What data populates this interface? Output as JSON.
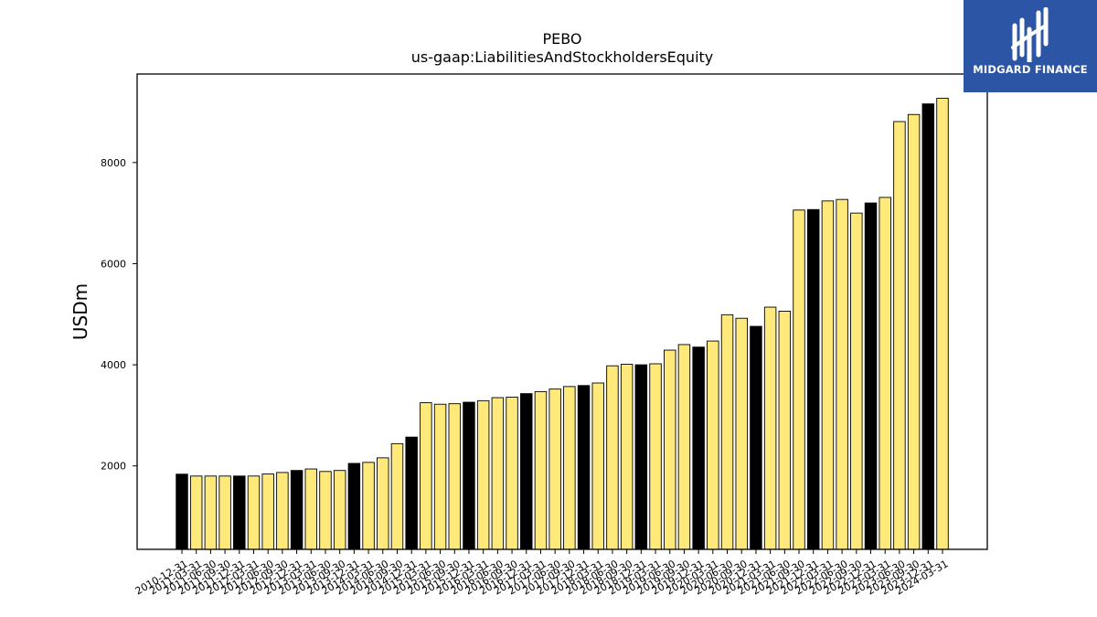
{
  "brand": {
    "name": "MIDGARD FINANCE",
    "logo_icon": "midgard-logo-icon",
    "background_color": "#2c55a6"
  },
  "chart_data": {
    "type": "bar",
    "title": "PEBO",
    "subtitle": "us-gaap:LiabilitiesAndStockholdersEquity",
    "xlabel": "",
    "ylabel": "USDm",
    "ylim": [
      350,
      9750
    ],
    "yticks": [
      2000,
      4000,
      6000,
      8000
    ],
    "grid": false,
    "legend": "none",
    "colors": {
      "annual": "#000000",
      "quarterly": "#ffe97a",
      "edge": "#000000"
    },
    "categories": [
      "2010-12-31",
      "2011-03-31",
      "2011-06-30",
      "2011-09-30",
      "2011-12-31",
      "2012-03-31",
      "2012-06-30",
      "2012-09-30",
      "2012-12-31",
      "2013-03-31",
      "2013-06-30",
      "2013-09-30",
      "2013-12-31",
      "2014-03-31",
      "2014-06-30",
      "2014-09-30",
      "2014-12-31",
      "2015-03-31",
      "2015-06-30",
      "2015-09-30",
      "2015-12-31",
      "2016-03-31",
      "2016-06-30",
      "2016-09-30",
      "2016-12-31",
      "2017-03-31",
      "2017-06-30",
      "2017-09-30",
      "2017-12-31",
      "2018-03-31",
      "2018-06-30",
      "2018-09-30",
      "2018-12-31",
      "2019-03-31",
      "2019-06-30",
      "2019-09-30",
      "2019-12-31",
      "2020-03-31",
      "2020-06-30",
      "2020-09-30",
      "2020-12-31",
      "2021-03-31",
      "2021-06-30",
      "2021-09-30",
      "2021-12-31",
      "2022-03-31",
      "2022-06-30",
      "2022-09-30",
      "2022-12-31",
      "2023-03-31",
      "2023-06-30",
      "2023-09-30",
      "2023-12-31",
      "2024-03-31"
    ],
    "values": [
      1837,
      1800,
      1800,
      1800,
      1800,
      1800,
      1840,
      1870,
      1910,
      1940,
      1890,
      1910,
      2050,
      2070,
      2160,
      2440,
      2570,
      3250,
      3220,
      3230,
      3260,
      3290,
      3350,
      3360,
      3430,
      3470,
      3520,
      3570,
      3590,
      3640,
      3980,
      4010,
      4000,
      4020,
      4290,
      4400,
      4350,
      4470,
      4990,
      4920,
      4760,
      5140,
      5060,
      7060,
      7070,
      7240,
      7270,
      7000,
      7200,
      7310,
      8810,
      8950,
      9160,
      9270
    ],
    "annual_flags": [
      1,
      0,
      0,
      0,
      1,
      0,
      0,
      0,
      1,
      0,
      0,
      0,
      1,
      0,
      0,
      0,
      1,
      0,
      0,
      0,
      1,
      0,
      0,
      0,
      1,
      0,
      0,
      0,
      1,
      0,
      0,
      0,
      1,
      0,
      0,
      0,
      1,
      0,
      0,
      0,
      1,
      0,
      0,
      0,
      1,
      0,
      0,
      0,
      1,
      0,
      0,
      0,
      1,
      0
    ]
  }
}
